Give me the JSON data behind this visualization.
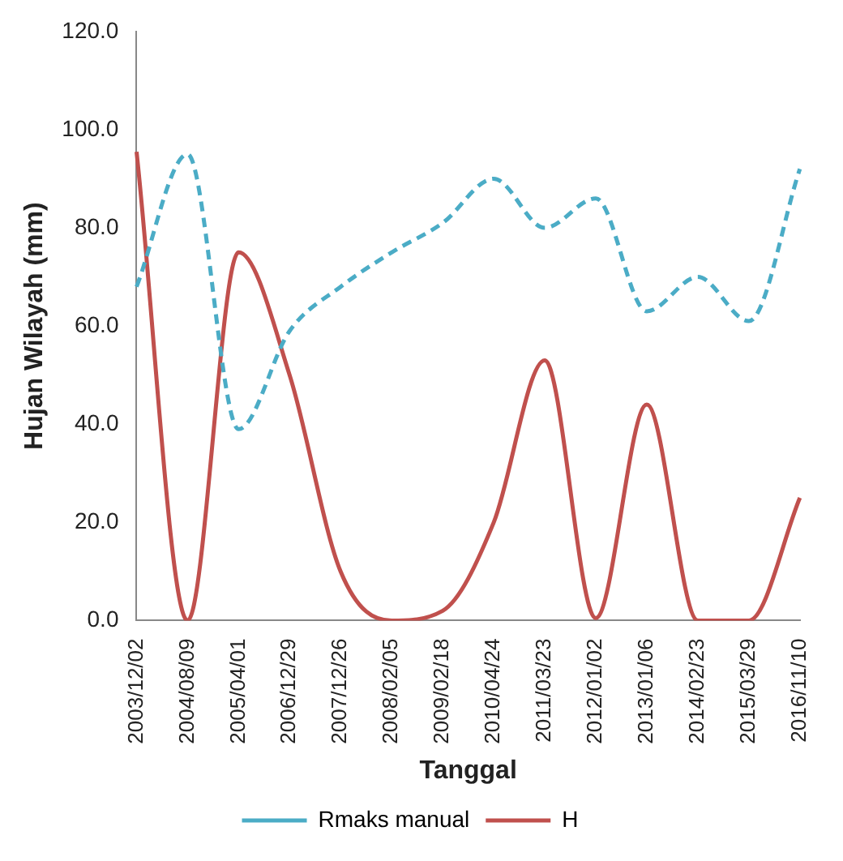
{
  "chart_data": {
    "type": "line",
    "xlabel": "Tanggal",
    "ylabel": "Hujan Wilayah (mm)",
    "categories": [
      "2003/12/02",
      "2004/08/09",
      "2005/04/01",
      "2006/12/29",
      "2007/12/26",
      "2008/02/05",
      "2009/02/18",
      "2010/04/24",
      "2011/03/23",
      "2012/01/02",
      "2013/01/06",
      "2014/02/23",
      "2015/03/29",
      "2016/11/10"
    ],
    "series": [
      {
        "name": "Rmaks manual",
        "color": "#4bacc6",
        "line_style": "dashed",
        "values": [
          68,
          95,
          39,
          59,
          68,
          75,
          81,
          90,
          80,
          86,
          63,
          70,
          61,
          92
        ]
      },
      {
        "name": "H",
        "color": "#c0504d",
        "line_style": "solid",
        "values": [
          95.5,
          0,
          75,
          50,
          10,
          0,
          2,
          20,
          53,
          0.5,
          44,
          0,
          0,
          25
        ]
      }
    ],
    "ylim": [
      0,
      120
    ],
    "yticks": [
      {
        "value": 0,
        "label": "0.0"
      },
      {
        "value": 20,
        "label": "20.0"
      },
      {
        "value": 40,
        "label": "40.0"
      },
      {
        "value": 60,
        "label": "60.0"
      },
      {
        "value": 80,
        "label": "80.0"
      },
      {
        "value": 100,
        "label": "100.0"
      },
      {
        "value": 120,
        "label": "120.0"
      }
    ],
    "marker": "none",
    "grid": false,
    "legend": "bottom"
  }
}
